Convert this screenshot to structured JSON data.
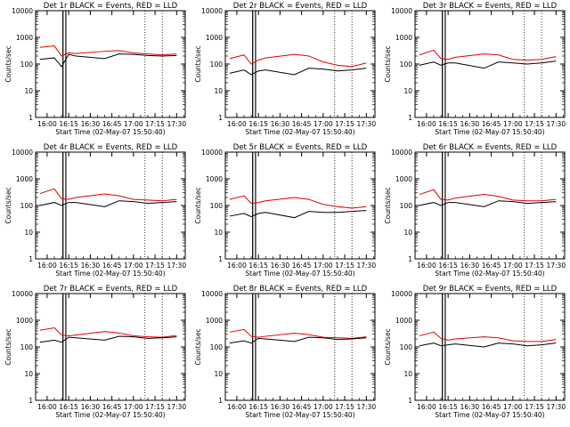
{
  "chart_data": [
    {
      "type": "line",
      "title": "Det 1r BLACK = Events, RED = LLD",
      "xlabel": "Start Time (02-May-07 15:50:40)",
      "ylabel": "Counts/sec",
      "y_scale": "log",
      "ylim": [
        1,
        10000
      ],
      "xlim_minutes": [
        -10,
        100
      ],
      "x_tick_labels": [
        "16:00",
        "16:15",
        "16:30",
        "16:45",
        "17:00",
        "17:15",
        "17:30"
      ],
      "y_tick_labels": [
        "1",
        "10",
        "100",
        "1000",
        "10000"
      ],
      "series": [
        {
          "color": "#e00000",
          "x": [
            0,
            10,
            15,
            20,
            25,
            45,
            55,
            65,
            75,
            85,
            95
          ],
          "y": [
            420,
            480,
            200,
            260,
            250,
            300,
            320,
            260,
            240,
            220,
            240
          ]
        },
        {
          "color": "#000000",
          "x": [
            0,
            10,
            15,
            20,
            25,
            45,
            55,
            65,
            75,
            85,
            95
          ],
          "y": [
            150,
            170,
            80,
            230,
            200,
            160,
            240,
            230,
            210,
            200,
            210
          ]
        }
      ]
    },
    {
      "type": "line",
      "title": "Det 2r BLACK = Events, RED = LLD",
      "xlabel": "Start Time (02-May-07 15:50:40)",
      "ylabel": "Counts/sec",
      "y_scale": "log",
      "ylim": [
        1,
        10000
      ],
      "xlim_minutes": [
        -10,
        100
      ],
      "x_tick_labels": [
        "16:00",
        "16:15",
        "16:30",
        "16:45",
        "17:00",
        "17:15",
        "17:30"
      ],
      "y_tick_labels": [
        "1",
        "10",
        "100",
        "1000",
        "10000"
      ],
      "series": [
        {
          "color": "#e00000",
          "x": [
            0,
            10,
            15,
            20,
            25,
            45,
            55,
            65,
            75,
            85,
            95
          ],
          "y": [
            160,
            220,
            100,
            140,
            170,
            230,
            200,
            120,
            90,
            80,
            110
          ]
        },
        {
          "color": "#000000",
          "x": [
            0,
            10,
            15,
            20,
            25,
            45,
            55,
            65,
            75,
            85,
            95
          ],
          "y": [
            45,
            60,
            40,
            55,
            60,
            40,
            70,
            65,
            55,
            60,
            70
          ]
        }
      ]
    },
    {
      "type": "line",
      "title": "Det 3r BLACK = Events, RED = LLD",
      "xlabel": "Start Time (02-May-07 15:50:40)",
      "ylabel": "Counts/sec",
      "y_scale": "log",
      "ylim": [
        1,
        10000
      ],
      "xlim_minutes": [
        -10,
        100
      ],
      "x_tick_labels": [
        "16:00",
        "16:15",
        "16:30",
        "16:45",
        "17:00",
        "17:15",
        "17:30"
      ],
      "y_tick_labels": [
        "1",
        "10",
        "100",
        "1000",
        "10000"
      ],
      "series": [
        {
          "color": "#e00000",
          "x": [
            0,
            10,
            15,
            20,
            25,
            45,
            55,
            65,
            75,
            85,
            95
          ],
          "y": [
            220,
            330,
            160,
            150,
            180,
            240,
            220,
            150,
            140,
            150,
            190
          ]
        },
        {
          "color": "#000000",
          "x": [
            0,
            10,
            15,
            20,
            25,
            45,
            55,
            65,
            75,
            85,
            95
          ],
          "y": [
            90,
            120,
            90,
            110,
            110,
            70,
            120,
            110,
            100,
            110,
            130
          ]
        }
      ]
    },
    {
      "type": "line",
      "title": "Det 4r BLACK = Events, RED = LLD",
      "xlabel": "Start Time (02-May-07 15:50:40)",
      "ylabel": "Counts/sec",
      "y_scale": "log",
      "ylim": [
        1,
        10000
      ],
      "xlim_minutes": [
        -10,
        100
      ],
      "x_tick_labels": [
        "16:00",
        "16:15",
        "16:30",
        "16:45",
        "17:00",
        "17:15",
        "17:30"
      ],
      "y_tick_labels": [
        "1",
        "10",
        "100",
        "1000",
        "10000"
      ],
      "series": [
        {
          "color": "#e00000",
          "x": [
            0,
            10,
            15,
            20,
            25,
            45,
            55,
            65,
            75,
            85,
            95
          ],
          "y": [
            280,
            420,
            180,
            170,
            200,
            270,
            230,
            170,
            160,
            150,
            170
          ]
        },
        {
          "color": "#000000",
          "x": [
            0,
            10,
            15,
            20,
            25,
            45,
            55,
            65,
            75,
            85,
            95
          ],
          "y": [
            100,
            130,
            100,
            130,
            130,
            90,
            150,
            140,
            120,
            130,
            140
          ]
        }
      ]
    },
    {
      "type": "line",
      "title": "Det 5r BLACK = Events, RED = LLD",
      "xlabel": "Start Time (02-May-07 15:50:40)",
      "ylabel": "Counts/sec",
      "y_scale": "log",
      "ylim": [
        1,
        10000
      ],
      "xlim_minutes": [
        -10,
        100
      ],
      "x_tick_labels": [
        "16:00",
        "16:15",
        "16:30",
        "16:45",
        "17:00",
        "17:15",
        "17:30"
      ],
      "y_tick_labels": [
        "1",
        "10",
        "100",
        "1000",
        "10000"
      ],
      "series": [
        {
          "color": "#e00000",
          "x": [
            0,
            10,
            15,
            20,
            25,
            45,
            55,
            65,
            75,
            85,
            95
          ],
          "y": [
            170,
            230,
            120,
            130,
            150,
            200,
            170,
            110,
            90,
            80,
            90
          ]
        },
        {
          "color": "#000000",
          "x": [
            0,
            10,
            15,
            20,
            25,
            45,
            55,
            65,
            75,
            85,
            95
          ],
          "y": [
            40,
            50,
            38,
            50,
            55,
            35,
            60,
            55,
            55,
            60,
            65
          ]
        }
      ]
    },
    {
      "type": "line",
      "title": "Det 6r BLACK = Events, RED = LLD",
      "xlabel": "Start Time (02-May-07 15:50:40)",
      "ylabel": "Counts/sec",
      "y_scale": "log",
      "ylim": [
        1,
        10000
      ],
      "xlim_minutes": [
        -10,
        100
      ],
      "x_tick_labels": [
        "16:00",
        "16:15",
        "16:30",
        "16:45",
        "17:00",
        "17:15",
        "17:30"
      ],
      "y_tick_labels": [
        "1",
        "10",
        "100",
        "1000",
        "10000"
      ],
      "series": [
        {
          "color": "#e00000",
          "x": [
            0,
            10,
            15,
            20,
            25,
            45,
            55,
            65,
            75,
            85,
            95
          ],
          "y": [
            260,
            390,
            170,
            160,
            190,
            260,
            220,
            160,
            150,
            150,
            170
          ]
        },
        {
          "color": "#000000",
          "x": [
            0,
            10,
            15,
            20,
            25,
            45,
            55,
            65,
            75,
            85,
            95
          ],
          "y": [
            100,
            130,
            100,
            130,
            130,
            90,
            150,
            140,
            120,
            130,
            140
          ]
        }
      ]
    },
    {
      "type": "line",
      "title": "Det 7r BLACK = Events, RED = LLD",
      "xlabel": "Start Time (02-May-07 15:50:40)",
      "ylabel": "Counts/sec",
      "y_scale": "log",
      "ylim": [
        1,
        10000
      ],
      "xlim_minutes": [
        -10,
        100
      ],
      "x_tick_labels": [
        "16:00",
        "16:15",
        "16:30",
        "16:45",
        "17:00",
        "17:15",
        "17:30"
      ],
      "y_tick_labels": [
        "1",
        "10",
        "100",
        "1000",
        "10000"
      ],
      "series": [
        {
          "color": "#e00000",
          "x": [
            0,
            10,
            15,
            20,
            25,
            45,
            55,
            65,
            75,
            85,
            95
          ],
          "y": [
            420,
            520,
            280,
            260,
            280,
            380,
            330,
            260,
            240,
            230,
            270
          ]
        },
        {
          "color": "#000000",
          "x": [
            0,
            10,
            15,
            20,
            25,
            45,
            55,
            65,
            75,
            85,
            95
          ],
          "y": [
            150,
            180,
            150,
            230,
            220,
            180,
            250,
            240,
            210,
            220,
            240
          ]
        }
      ]
    },
    {
      "type": "line",
      "title": "Det 8r BLACK = Events, RED = LLD",
      "xlabel": "Start Time (02-May-07 15:50:40)",
      "ylabel": "Counts/sec",
      "y_scale": "log",
      "ylim": [
        1,
        10000
      ],
      "xlim_minutes": [
        -10,
        100
      ],
      "x_tick_labels": [
        "16:00",
        "16:15",
        "16:30",
        "16:45",
        "17:00",
        "17:15",
        "17:30"
      ],
      "y_tick_labels": [
        "1",
        "10",
        "100",
        "1000",
        "10000"
      ],
      "series": [
        {
          "color": "#e00000",
          "x": [
            0,
            10,
            15,
            20,
            25,
            45,
            55,
            65,
            75,
            85,
            95
          ],
          "y": [
            360,
            450,
            250,
            230,
            250,
            330,
            290,
            230,
            220,
            210,
            240
          ]
        },
        {
          "color": "#000000",
          "x": [
            0,
            10,
            15,
            20,
            25,
            45,
            55,
            65,
            75,
            85,
            95
          ],
          "y": [
            140,
            170,
            140,
            210,
            200,
            160,
            230,
            220,
            190,
            200,
            220
          ]
        }
      ]
    },
    {
      "type": "line",
      "title": "Det 9r BLACK = Events, RED = LLD",
      "xlabel": "Start Time (02-May-07 15:50:40)",
      "ylabel": "Counts/sec",
      "y_scale": "log",
      "ylim": [
        1,
        10000
      ],
      "xlim_minutes": [
        -10,
        100
      ],
      "x_tick_labels": [
        "16:00",
        "16:15",
        "16:30",
        "16:45",
        "17:00",
        "17:15",
        "17:30"
      ],
      "y_tick_labels": [
        "1",
        "10",
        "100",
        "1000",
        "10000"
      ],
      "series": [
        {
          "color": "#e00000",
          "x": [
            0,
            10,
            15,
            20,
            25,
            45,
            55,
            65,
            75,
            85,
            95
          ],
          "y": [
            260,
            360,
            210,
            180,
            200,
            240,
            220,
            170,
            160,
            160,
            190
          ]
        },
        {
          "color": "#000000",
          "x": [
            0,
            10,
            15,
            20,
            25,
            45,
            55,
            65,
            75,
            85,
            95
          ],
          "y": [
            110,
            140,
            110,
            120,
            130,
            100,
            140,
            130,
            110,
            120,
            140
          ]
        }
      ]
    }
  ]
}
